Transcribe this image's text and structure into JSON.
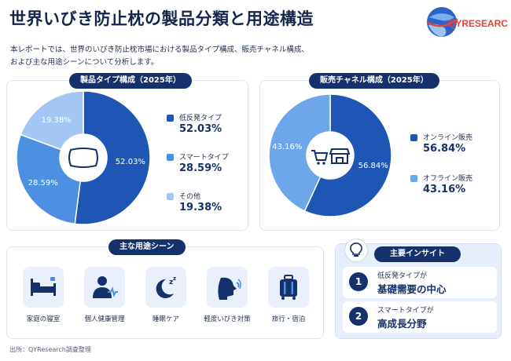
{
  "header": {
    "title": "世界いびき防止枕の製品分類と用途構造",
    "logo_text": "QYRESEARCH"
  },
  "intro": {
    "line1": "本レポートでは、世界のいびき防止枕市場における製品タイプ構成、販売チャネル構成、",
    "line2": "および主な用途シーンについて分析します。"
  },
  "chart_data": [
    {
      "type": "pie",
      "title": "製品タイプ構成（2025年）",
      "categories": [
        "低反発タイプ",
        "スマートタイプ",
        "その他"
      ],
      "values": [
        52.03,
        28.59,
        19.38
      ],
      "labels": [
        "52.03%",
        "28.59%",
        "19.38%"
      ],
      "colors": [
        "#1f56b5",
        "#4d8fe0",
        "#a3c7f2"
      ],
      "legend": "right"
    },
    {
      "type": "pie",
      "title": "販売チャネル構成（2025年）",
      "categories": [
        "オンライン販売",
        "オフライン販売"
      ],
      "values": [
        56.84,
        43.16
      ],
      "labels": [
        "56.84%",
        "43.16%"
      ],
      "colors": [
        "#1f56b5",
        "#6ea6ea"
      ],
      "legend": "right"
    }
  ],
  "uses": {
    "title": "主な用途シーン",
    "items": [
      {
        "label": "家庭の寝室",
        "icon": "bed-icon"
      },
      {
        "label": "個人健康管理",
        "icon": "person-health-icon"
      },
      {
        "label": "睡眠ケア",
        "icon": "moon-sleep-icon"
      },
      {
        "label": "軽度いびき対策",
        "icon": "snoring-face-icon"
      },
      {
        "label": "旅行・宿泊",
        "icon": "suitcase-icon"
      }
    ]
  },
  "insights": {
    "title": "主要インサイト",
    "items": [
      {
        "num": "1",
        "line1": "低反発タイプが",
        "line2": "基礎需要の中心"
      },
      {
        "num": "2",
        "line1": "スマートタイプが",
        "line2": "高成長分野"
      }
    ]
  },
  "source": "出所：QYResearch調査整理"
}
